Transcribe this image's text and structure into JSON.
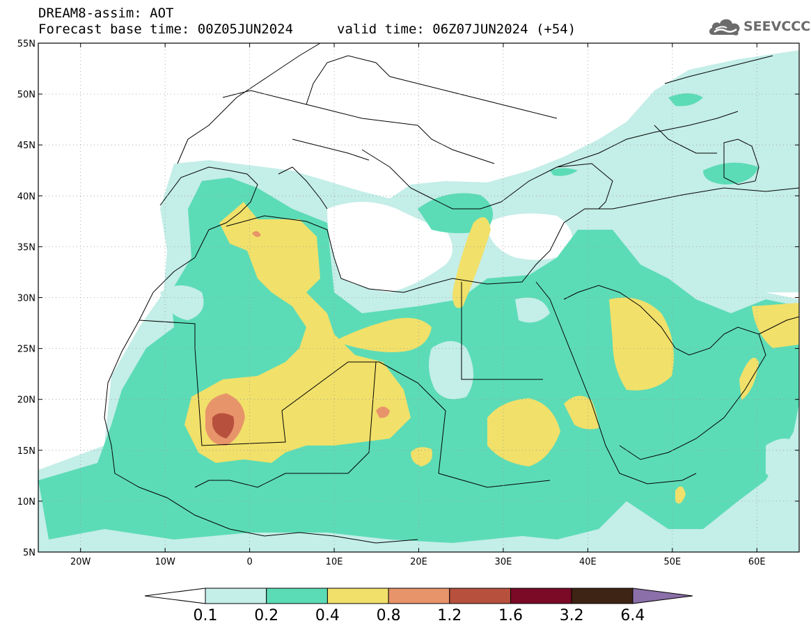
{
  "header": {
    "title": "DREAM8-assim: AOT",
    "base_time": "Forecast base time: 00Z05JUN2024",
    "valid_time": "valid time: 06Z07JUN2024 (+54)"
  },
  "logo": {
    "text": "SEEVCCC",
    "icon": "cloud-icon"
  },
  "map": {
    "lon_range": [
      -25,
      65
    ],
    "lat_range": [
      5,
      55
    ],
    "lat_ticks": [
      {
        "value": 55,
        "label": "55N"
      },
      {
        "value": 50,
        "label": "50N"
      },
      {
        "value": 45,
        "label": "45N"
      },
      {
        "value": 40,
        "label": "40N"
      },
      {
        "value": 35,
        "label": "35N"
      },
      {
        "value": 30,
        "label": "30N"
      },
      {
        "value": 25,
        "label": "25N"
      },
      {
        "value": 20,
        "label": "20N"
      },
      {
        "value": 15,
        "label": "15N"
      },
      {
        "value": 10,
        "label": "10N"
      },
      {
        "value": 5,
        "label": "5N"
      }
    ],
    "lon_ticks": [
      {
        "value": -20,
        "label": "20W"
      },
      {
        "value": -10,
        "label": "10W"
      },
      {
        "value": 0,
        "label": "0"
      },
      {
        "value": 10,
        "label": "10E"
      },
      {
        "value": 20,
        "label": "20E"
      },
      {
        "value": 30,
        "label": "30E"
      },
      {
        "value": 40,
        "label": "40E"
      },
      {
        "value": 50,
        "label": "50E"
      },
      {
        "value": 60,
        "label": "60E"
      }
    ],
    "grid": "dotted",
    "field": "aerosol optical thickness"
  },
  "colorbar": {
    "labels": [
      "0.1",
      "0.2",
      "0.4",
      "0.8",
      "1.2",
      "1.6",
      "3.2",
      "6.4"
    ],
    "under_color": "#ffffff",
    "over_color": "#8a6fa8",
    "colors": [
      "#c4eee8",
      "#5cdcb6",
      "#f1e06a",
      "#e8946a",
      "#b8503e",
      "#7a0a26",
      "#3e2414"
    ]
  }
}
